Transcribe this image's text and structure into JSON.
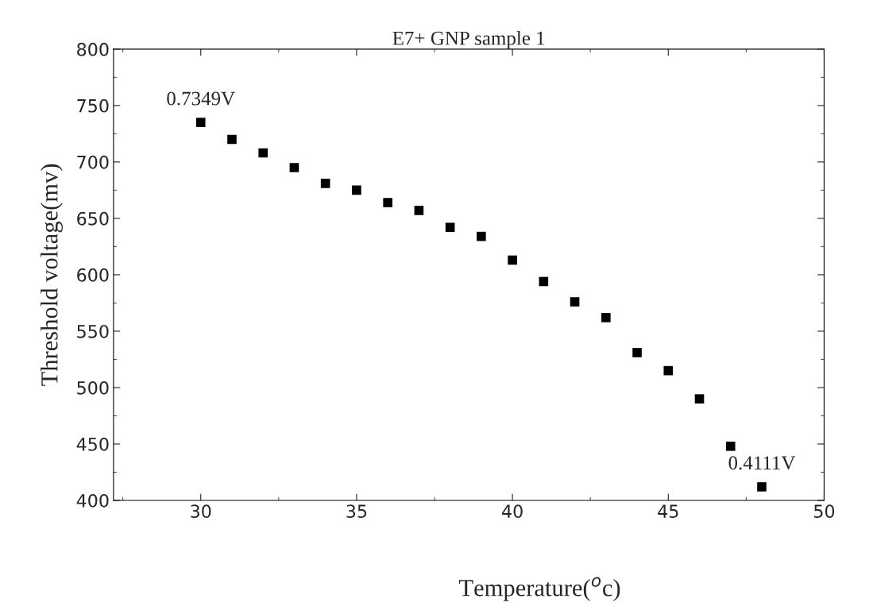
{
  "chart_data": {
    "type": "scatter",
    "title": "E7+ GNP sample 1",
    "xlabel": "Temperature($^{o}$c)",
    "ylabel": "Threshold voltage(mv)",
    "x": [
      30,
      31,
      32,
      33,
      34,
      35,
      36,
      37,
      38,
      39,
      40,
      41,
      42,
      43,
      44,
      45,
      46,
      47,
      48
    ],
    "series": [
      {
        "color": "#000000",
        "values": [
          735,
          720,
          708,
          695,
          681,
          675,
          664,
          657,
          642,
          634,
          613,
          594,
          576,
          562,
          531,
          515,
          490,
          448,
          412
        ]
      }
    ],
    "marker": "square",
    "xlim": [
      27.2,
      50
    ],
    "xticks": [
      30,
      35,
      40,
      45,
      50
    ],
    "ylim": [
      400,
      800
    ],
    "yticks": [
      400,
      450,
      500,
      550,
      600,
      650,
      700,
      750,
      800
    ],
    "grid": false,
    "annotations": [
      {
        "text": "0.7349V",
        "x": 30,
        "y": 735
      },
      {
        "text": "0.4111V",
        "x": 48,
        "y": 412
      }
    ]
  }
}
